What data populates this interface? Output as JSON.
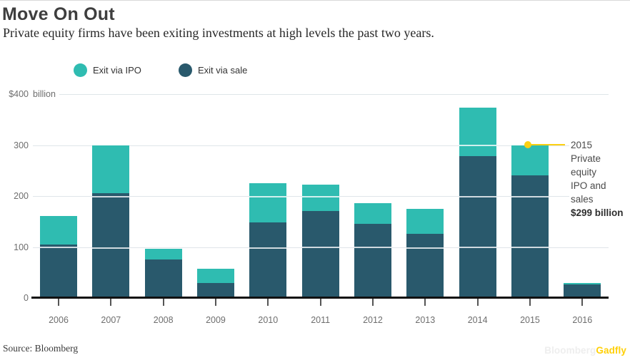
{
  "header": {
    "title": "Move On Out",
    "subtitle": "Private equity firms have been exiting investments at high levels the past two years."
  },
  "legend": [
    {
      "label": "Exit via IPO",
      "color": "#2fbcb1"
    },
    {
      "label": "Exit via sale",
      "color": "#29596c"
    }
  ],
  "chart_data": {
    "type": "bar",
    "stacked": true,
    "title": "Move On Out",
    "categories": [
      "2006",
      "2007",
      "2008",
      "2009",
      "2010",
      "2011",
      "2012",
      "2013",
      "2014",
      "2015",
      "2016"
    ],
    "series": [
      {
        "name": "Exit via IPO",
        "color": "#2fbcb1",
        "values": [
          56,
          95,
          22,
          29,
          77,
          52,
          41,
          49,
          95,
          59,
          3
        ]
      },
      {
        "name": "Exit via sale",
        "color": "#29596c",
        "values": [
          105,
          205,
          75,
          29,
          148,
          171,
          145,
          126,
          279,
          240,
          26
        ]
      }
    ],
    "totals": [
      161,
      300,
      97,
      58,
      225,
      223,
      186,
      175,
      374,
      299,
      29
    ],
    "ylim": [
      0,
      400
    ],
    "yticks": [
      0,
      100,
      200,
      300,
      400
    ],
    "unit": "billion",
    "currency": "$",
    "grid": true,
    "legend_position": "top",
    "annotation": {
      "year": "2015",
      "line1": "Private equity",
      "line2": "IPO and sales",
      "value_label": "$299 billion",
      "total": 299
    }
  },
  "yaxis": {
    "ticks": [
      {
        "value": 400,
        "label": "$400",
        "unit": "billion"
      },
      {
        "value": 300,
        "label": "300"
      },
      {
        "value": 200,
        "label": "200"
      },
      {
        "value": 100,
        "label": "100"
      },
      {
        "value": 0,
        "label": "0"
      }
    ]
  },
  "footer": {
    "source": "Source: Bloomberg",
    "brand_light": "Bloomberg",
    "brand_accent": "Gadfly"
  },
  "palette": {
    "ipo_teal": "#2fbcb1",
    "sale_dark_teal": "#29596c",
    "gridline": "#dfe5e9",
    "axis_text": "#6e6e6e",
    "baseline": "#111111",
    "tick": "#555555",
    "callout_yellow": "#fcd013",
    "brand_light": "#eeeeee",
    "brand_yellow": "#ffd008",
    "title_text": "#3e3e3e"
  }
}
